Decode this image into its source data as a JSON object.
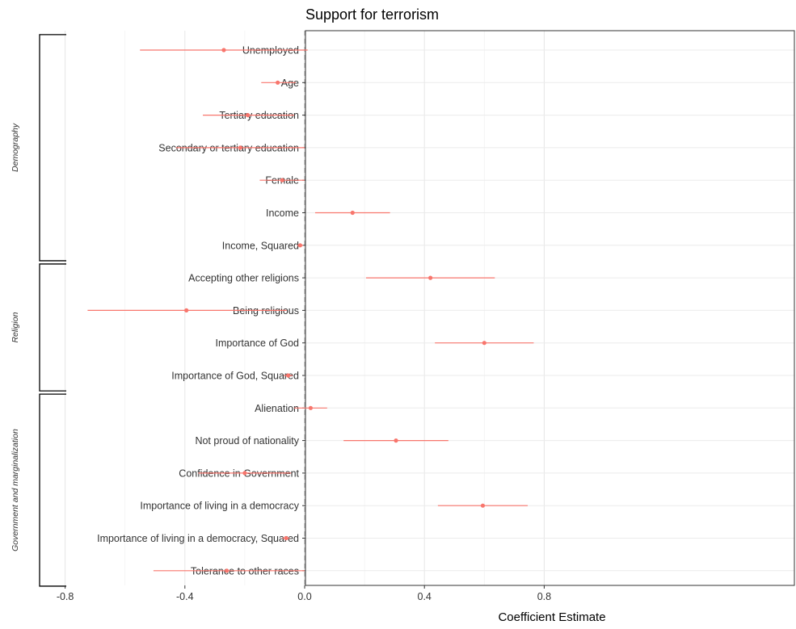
{
  "chart_data": {
    "type": "forest",
    "title": "Support for terrorism",
    "xlabel": "Coefficient Estimate",
    "xlim": [
      -0.8,
      0.82
    ],
    "x_ticks": [
      -0.8,
      -0.4,
      0.0,
      0.4,
      0.8
    ],
    "x_tick_labels": [
      "-0.8",
      "-0.4",
      "0.0",
      "0.4",
      "0.8"
    ],
    "reference_line": 0.0,
    "grid": true,
    "point_color": "#F8766D",
    "groups": [
      {
        "label": "Demography",
        "variables": [
          "Unemployed",
          "Age",
          "Tertiary education",
          "Secondary or tertiary education",
          "Female",
          "Income",
          "Income, Squared"
        ]
      },
      {
        "label": "Religion",
        "variables": [
          "Accepting other religions",
          "Being religious",
          "Importance of God",
          "Importance of God, Squared"
        ]
      },
      {
        "label": "Government and marginalization",
        "variables": [
          "Alienation",
          "Not proud of nationality",
          "Confidence in Government",
          "Importance of living in a democracy",
          "Importance of living in a democracy, Squared",
          "Tolerance to other races"
        ]
      }
    ],
    "series": [
      {
        "variable": "Unemployed",
        "estimate": -0.27,
        "ci_low": -0.55,
        "ci_high": 0.01
      },
      {
        "variable": "Age",
        "estimate": -0.09,
        "ci_low": -0.145,
        "ci_high": -0.03
      },
      {
        "variable": "Tertiary education",
        "estimate": -0.19,
        "ci_low": -0.34,
        "ci_high": -0.035
      },
      {
        "variable": "Secondary or tertiary education",
        "estimate": -0.215,
        "ci_low": -0.43,
        "ci_high": 0.0
      },
      {
        "variable": "Female",
        "estimate": -0.075,
        "ci_low": -0.15,
        "ci_high": 0.0
      },
      {
        "variable": "Income",
        "estimate": 0.16,
        "ci_low": 0.035,
        "ci_high": 0.285
      },
      {
        "variable": "Income, Squared",
        "estimate": -0.015,
        "ci_low": -0.025,
        "ci_high": -0.005
      },
      {
        "variable": "Accepting other religions",
        "estimate": 0.42,
        "ci_low": 0.205,
        "ci_high": 0.635
      },
      {
        "variable": "Being religious",
        "estimate": -0.395,
        "ci_low": -0.725,
        "ci_high": -0.06
      },
      {
        "variable": "Importance of God",
        "estimate": 0.6,
        "ci_low": 0.435,
        "ci_high": 0.765
      },
      {
        "variable": "Importance of God, Squared",
        "estimate": -0.055,
        "ci_low": -0.07,
        "ci_high": -0.04
      },
      {
        "variable": "Alienation",
        "estimate": 0.02,
        "ci_low": -0.035,
        "ci_high": 0.075
      },
      {
        "variable": "Not proud of nationality",
        "estimate": 0.305,
        "ci_low": 0.13,
        "ci_high": 0.48
      },
      {
        "variable": "Confidence in Government",
        "estimate": -0.2,
        "ci_low": -0.355,
        "ci_high": -0.045
      },
      {
        "variable": "Importance of living in a democracy",
        "estimate": 0.595,
        "ci_low": 0.445,
        "ci_high": 0.745
      },
      {
        "variable": "Importance of living in a democracy, Squared",
        "estimate": -0.062,
        "ci_low": -0.075,
        "ci_high": -0.05
      },
      {
        "variable": "Tolerance to other races",
        "estimate": -0.26,
        "ci_low": -0.505,
        "ci_high": 0.0
      }
    ]
  }
}
